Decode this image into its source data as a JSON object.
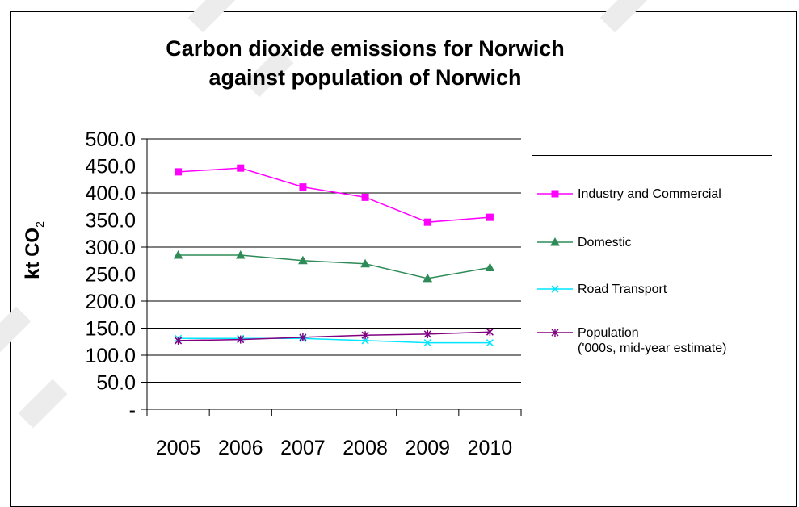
{
  "chart_data": {
    "type": "line",
    "title": "Carbon dioxide emissions for Norwich\nagainst population of Norwich",
    "ylabel": "kt CO",
    "ylabel_sub": "2",
    "xlabel": "",
    "categories": [
      "2005",
      "2006",
      "2007",
      "2008",
      "2009",
      "2010"
    ],
    "ylim": [
      0,
      500
    ],
    "yticks": [
      "-",
      "50.0",
      "100.0",
      "150.0",
      "200.0",
      "250.0",
      "300.0",
      "350.0",
      "400.0",
      "450.0",
      "500.0"
    ],
    "grid": true,
    "legend_position": "right",
    "series": [
      {
        "name": "Industry and Commercial",
        "values": [
          439,
          446,
          411,
          392,
          346,
          355
        ],
        "color": "#ff00ff",
        "marker": "square"
      },
      {
        "name": "Domestic",
        "values": [
          285,
          285,
          275,
          269,
          242,
          262
        ],
        "color": "#2e8b57",
        "marker": "triangle"
      },
      {
        "name": "Road Transport",
        "values": [
          131,
          131,
          131,
          127,
          123,
          123
        ],
        "color": "#00e5ff",
        "marker": "x"
      },
      {
        "name": "Population\n('000s, mid-year estimate)",
        "values": [
          127,
          129,
          133,
          137,
          139,
          143
        ],
        "color": "#800080",
        "marker": "star"
      }
    ]
  }
}
